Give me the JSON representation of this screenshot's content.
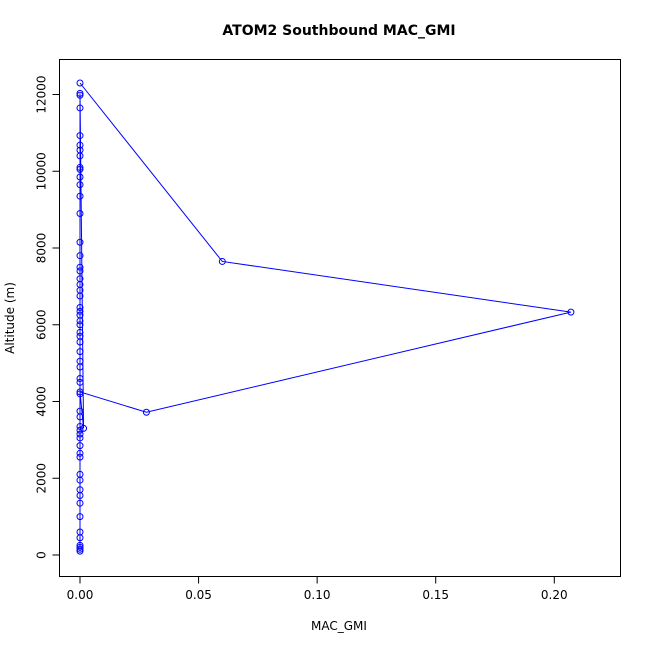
{
  "chart_data": {
    "type": "line",
    "title": "ATOM2 Southbound MAC_GMI",
    "xlabel": "MAC_GMI",
    "ylabel": "Altitude (m)",
    "xlim": [
      0,
      0.21
    ],
    "ylim": [
      0,
      12300
    ],
    "grid": false,
    "legend": "none",
    "color": "#0000ff",
    "x_ticks": [
      {
        "value": 0,
        "label": "0.00"
      },
      {
        "value": 0.05,
        "label": "0.05"
      },
      {
        "value": 0.1,
        "label": "0.10"
      },
      {
        "value": 0.15,
        "label": "0.15"
      },
      {
        "value": 0.2,
        "label": "0.20"
      }
    ],
    "y_ticks": [
      {
        "value": 0,
        "label": "0"
      },
      {
        "value": 2000,
        "label": "2000"
      },
      {
        "value": 4000,
        "label": "4000"
      },
      {
        "value": 6000,
        "label": "6000"
      },
      {
        "value": 8000,
        "label": "8000"
      },
      {
        "value": 10000,
        "label": "10000"
      },
      {
        "value": 12000,
        "label": "12000"
      }
    ],
    "series": [
      {
        "x": [
          0,
          0.06,
          0.207,
          0.028,
          0,
          0.0015,
          0,
          0,
          0,
          0,
          0,
          0,
          0,
          0,
          0,
          0,
          0,
          0,
          0,
          0,
          0,
          0,
          0,
          0,
          0,
          0,
          0,
          0,
          0,
          0,
          0,
          0,
          0,
          0,
          0,
          0,
          0,
          0,
          0,
          0,
          0,
          0,
          0,
          0,
          0,
          0,
          0,
          0,
          0,
          0,
          0,
          0,
          0,
          0,
          0,
          0,
          0,
          0,
          0,
          0,
          0,
          0
        ],
        "y": [
          12300,
          7650,
          6330,
          3720,
          4250,
          3300,
          12030,
          11980,
          11650,
          10930,
          10680,
          10550,
          10400,
          10100,
          10050,
          9850,
          9650,
          9350,
          8900,
          8150,
          7800,
          7500,
          7400,
          7200,
          7050,
          6900,
          6750,
          6450,
          6350,
          6250,
          6100,
          6000,
          5800,
          5700,
          5550,
          5300,
          5050,
          4900,
          4600,
          4500,
          4200,
          3750,
          3600,
          3350,
          3250,
          3150,
          3050,
          2850,
          2650,
          2550,
          2100,
          1950,
          1700,
          1550,
          1350,
          1000,
          600,
          450,
          250,
          200,
          150,
          100
        ]
      }
    ]
  }
}
